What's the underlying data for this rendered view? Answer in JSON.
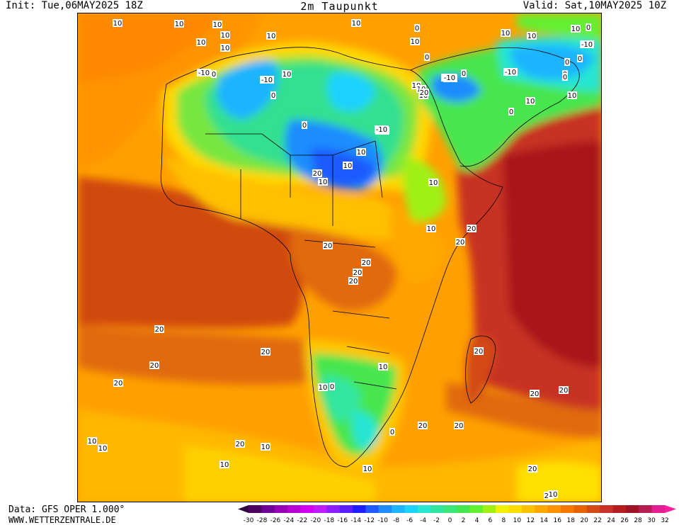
{
  "header": {
    "init": "Init: Tue,06MAY2025 18Z",
    "title": "2m Taupunkt",
    "valid": "Valid: Sat,10MAY2025 10Z"
  },
  "footer": {
    "data_source": "Data: GFS OPER 1.000°",
    "site": "WWW.WETTERZENTRALE.DE"
  },
  "colorbar": {
    "ticks": [
      "-30",
      "-28",
      "-26",
      "-24",
      "-22",
      "-20",
      "-18",
      "-16",
      "-14",
      "-12",
      "-10",
      "-8",
      "-6",
      "-4",
      "-2",
      "0",
      "2",
      "4",
      "6",
      "8",
      "10",
      "12",
      "14",
      "16",
      "18",
      "20",
      "22",
      "24",
      "26",
      "28",
      "30",
      "32"
    ],
    "colors": [
      "#4b0062",
      "#6e0096",
      "#9500b4",
      "#b400d2",
      "#d200f0",
      "#be1eff",
      "#8c1eff",
      "#5a1eff",
      "#1e1eff",
      "#1e5aff",
      "#1e8cff",
      "#1eb4ff",
      "#1ed2ff",
      "#28e6d2",
      "#32e6a0",
      "#3ce678",
      "#46e650",
      "#64f032",
      "#a0f014",
      "#f0f000",
      "#ffdc00",
      "#ffc000",
      "#ffa800",
      "#ff9000",
      "#f57800",
      "#e66400",
      "#d24a14",
      "#c83228",
      "#b41e1e",
      "#a01428",
      "#b41e50",
      "#e61e96"
    ]
  },
  "map": {
    "background_color": "#ffa000",
    "contour_labels": [
      "10",
      "10",
      "10",
      "10",
      "10",
      "10",
      "10",
      "10",
      "10",
      "0",
      "0",
      "10",
      "10",
      "0",
      "0",
      "-10",
      "0",
      "-10",
      "0",
      "10",
      "-10",
      "10",
      "-10",
      "0",
      "10",
      "0",
      "0",
      "-10",
      "0",
      "10",
      "-10",
      "10",
      "10",
      "20",
      "10",
      "0",
      "-10",
      "-10",
      "-10",
      "0",
      "10",
      "0",
      "10",
      "10",
      "20",
      "10",
      "10",
      "20",
      "20",
      "20",
      "20",
      "20",
      "20",
      "20",
      "10",
      "20",
      "20",
      "20",
      "20",
      "10",
      "0",
      "20",
      "0",
      "20",
      "10",
      "20",
      "20",
      "10",
      "10",
      "20",
      "10",
      "10",
      "20",
      "20",
      "10"
    ]
  }
}
